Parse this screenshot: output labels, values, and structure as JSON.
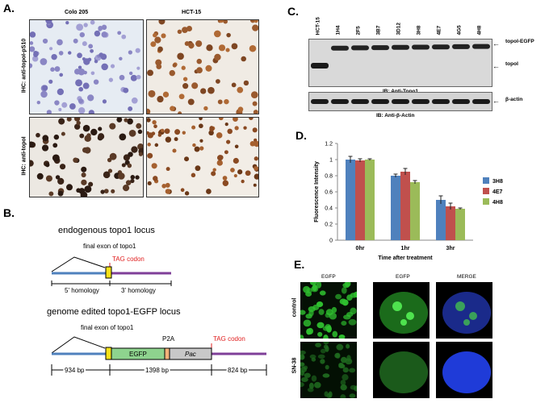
{
  "panels": {
    "a": "A.",
    "b": "B.",
    "c": "C.",
    "d": "D.",
    "e": "E."
  },
  "panel_a": {
    "col1": "Colo 205",
    "col2": "HCT-15",
    "row1": "IHC: anti-topoI-pS10",
    "row2": "IHC: anti-topoI"
  },
  "panel_b": {
    "title1": "endogenous topo1 locus",
    "final_exon1": "final exon of topo1",
    "tag1": "TAG codon",
    "homology5": "5' homology",
    "homology3": "3' homology",
    "title2": "genome edited topo1-EGFP locus",
    "final_exon2": "final exon of topo1",
    "p2a": "P2A",
    "tag2": "TAG codon",
    "egfp": "EGFP",
    "pac": "Pac",
    "bp1": "934 bp",
    "bp2": "1398 bp",
    "bp3": "824 bp"
  },
  "panel_c": {
    "lanes": [
      "HCT-15",
      "1H4",
      "2F5",
      "3B7",
      "3D12",
      "3H8",
      "4E7",
      "4G5",
      "4H8"
    ],
    "band_top": "topoI-EGFP",
    "band_bottom": "topoI",
    "ib1": "IB: Anti-Topo1",
    "actin": "β-actin",
    "ib2": "IB: Anti-β-Actin"
  },
  "panel_e": {
    "col1": "EGFP",
    "col2": "EGFP",
    "col3": "MERGE",
    "row1": "control",
    "row2": "SN-38"
  },
  "colors": {
    "blue": "#4f81bd",
    "red": "#c0504d",
    "green": "#9bbb59",
    "purple": "#7f3f98",
    "tag_red": "#e02020",
    "exon_yellow": "#f5e21a",
    "egfp_green": "#8ed38e"
  },
  "chart_data": {
    "type": "bar",
    "categories": [
      "0hr",
      "1hr",
      "3hr"
    ],
    "series": [
      {
        "name": "3H8",
        "values": [
          1.0,
          0.8,
          0.5
        ],
        "errors": [
          0.04,
          0.02,
          0.05
        ]
      },
      {
        "name": "4E7",
        "values": [
          0.99,
          0.85,
          0.42
        ],
        "errors": [
          0.02,
          0.04,
          0.04
        ]
      },
      {
        "name": "4H8",
        "values": [
          1.0,
          0.72,
          0.39
        ],
        "errors": [
          0.01,
          0.02,
          0.01
        ]
      }
    ],
    "xlabel": "Time after treatment",
    "ylabel": "Fluorescence Intensity",
    "ylim": [
      0,
      1.2
    ],
    "yticks": [
      "0",
      "0.2",
      "0.4",
      "0.6",
      "0.8",
      "1",
      "1.2"
    ],
    "legend": "right"
  }
}
